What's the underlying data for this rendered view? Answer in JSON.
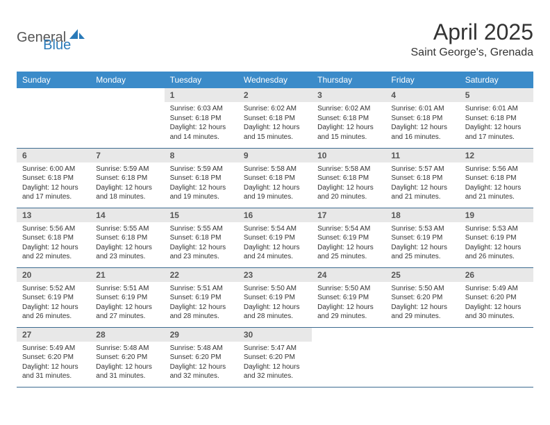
{
  "logo": {
    "word1": "General",
    "word2": "Blue"
  },
  "title": "April 2025",
  "location": "Saint George's, Grenada",
  "colors": {
    "header_bg": "#3b8bc9",
    "header_text": "#ffffff",
    "daynum_bg": "#e8e8e8",
    "daynum_text": "#555555",
    "body_text": "#333333",
    "rule": "#3b6a8f",
    "logo_gray": "#555555",
    "logo_blue": "#2a7ab9"
  },
  "typography": {
    "title_fontsize": 32,
    "location_fontsize": 16,
    "weekday_fontsize": 12,
    "daynum_fontsize": 12,
    "body_fontsize": 10
  },
  "weekdays": [
    "Sunday",
    "Monday",
    "Tuesday",
    "Wednesday",
    "Thursday",
    "Friday",
    "Saturday"
  ],
  "weeks": [
    [
      null,
      null,
      {
        "n": "1",
        "sr": "Sunrise: 6:03 AM",
        "ss": "Sunset: 6:18 PM",
        "dl": "Daylight: 12 hours and 14 minutes."
      },
      {
        "n": "2",
        "sr": "Sunrise: 6:02 AM",
        "ss": "Sunset: 6:18 PM",
        "dl": "Daylight: 12 hours and 15 minutes."
      },
      {
        "n": "3",
        "sr": "Sunrise: 6:02 AM",
        "ss": "Sunset: 6:18 PM",
        "dl": "Daylight: 12 hours and 15 minutes."
      },
      {
        "n": "4",
        "sr": "Sunrise: 6:01 AM",
        "ss": "Sunset: 6:18 PM",
        "dl": "Daylight: 12 hours and 16 minutes."
      },
      {
        "n": "5",
        "sr": "Sunrise: 6:01 AM",
        "ss": "Sunset: 6:18 PM",
        "dl": "Daylight: 12 hours and 17 minutes."
      }
    ],
    [
      {
        "n": "6",
        "sr": "Sunrise: 6:00 AM",
        "ss": "Sunset: 6:18 PM",
        "dl": "Daylight: 12 hours and 17 minutes."
      },
      {
        "n": "7",
        "sr": "Sunrise: 5:59 AM",
        "ss": "Sunset: 6:18 PM",
        "dl": "Daylight: 12 hours and 18 minutes."
      },
      {
        "n": "8",
        "sr": "Sunrise: 5:59 AM",
        "ss": "Sunset: 6:18 PM",
        "dl": "Daylight: 12 hours and 19 minutes."
      },
      {
        "n": "9",
        "sr": "Sunrise: 5:58 AM",
        "ss": "Sunset: 6:18 PM",
        "dl": "Daylight: 12 hours and 19 minutes."
      },
      {
        "n": "10",
        "sr": "Sunrise: 5:58 AM",
        "ss": "Sunset: 6:18 PM",
        "dl": "Daylight: 12 hours and 20 minutes."
      },
      {
        "n": "11",
        "sr": "Sunrise: 5:57 AM",
        "ss": "Sunset: 6:18 PM",
        "dl": "Daylight: 12 hours and 21 minutes."
      },
      {
        "n": "12",
        "sr": "Sunrise: 5:56 AM",
        "ss": "Sunset: 6:18 PM",
        "dl": "Daylight: 12 hours and 21 minutes."
      }
    ],
    [
      {
        "n": "13",
        "sr": "Sunrise: 5:56 AM",
        "ss": "Sunset: 6:18 PM",
        "dl": "Daylight: 12 hours and 22 minutes."
      },
      {
        "n": "14",
        "sr": "Sunrise: 5:55 AM",
        "ss": "Sunset: 6:18 PM",
        "dl": "Daylight: 12 hours and 23 minutes."
      },
      {
        "n": "15",
        "sr": "Sunrise: 5:55 AM",
        "ss": "Sunset: 6:18 PM",
        "dl": "Daylight: 12 hours and 23 minutes."
      },
      {
        "n": "16",
        "sr": "Sunrise: 5:54 AM",
        "ss": "Sunset: 6:19 PM",
        "dl": "Daylight: 12 hours and 24 minutes."
      },
      {
        "n": "17",
        "sr": "Sunrise: 5:54 AM",
        "ss": "Sunset: 6:19 PM",
        "dl": "Daylight: 12 hours and 25 minutes."
      },
      {
        "n": "18",
        "sr": "Sunrise: 5:53 AM",
        "ss": "Sunset: 6:19 PM",
        "dl": "Daylight: 12 hours and 25 minutes."
      },
      {
        "n": "19",
        "sr": "Sunrise: 5:53 AM",
        "ss": "Sunset: 6:19 PM",
        "dl": "Daylight: 12 hours and 26 minutes."
      }
    ],
    [
      {
        "n": "20",
        "sr": "Sunrise: 5:52 AM",
        "ss": "Sunset: 6:19 PM",
        "dl": "Daylight: 12 hours and 26 minutes."
      },
      {
        "n": "21",
        "sr": "Sunrise: 5:51 AM",
        "ss": "Sunset: 6:19 PM",
        "dl": "Daylight: 12 hours and 27 minutes."
      },
      {
        "n": "22",
        "sr": "Sunrise: 5:51 AM",
        "ss": "Sunset: 6:19 PM",
        "dl": "Daylight: 12 hours and 28 minutes."
      },
      {
        "n": "23",
        "sr": "Sunrise: 5:50 AM",
        "ss": "Sunset: 6:19 PM",
        "dl": "Daylight: 12 hours and 28 minutes."
      },
      {
        "n": "24",
        "sr": "Sunrise: 5:50 AM",
        "ss": "Sunset: 6:19 PM",
        "dl": "Daylight: 12 hours and 29 minutes."
      },
      {
        "n": "25",
        "sr": "Sunrise: 5:50 AM",
        "ss": "Sunset: 6:20 PM",
        "dl": "Daylight: 12 hours and 29 minutes."
      },
      {
        "n": "26",
        "sr": "Sunrise: 5:49 AM",
        "ss": "Sunset: 6:20 PM",
        "dl": "Daylight: 12 hours and 30 minutes."
      }
    ],
    [
      {
        "n": "27",
        "sr": "Sunrise: 5:49 AM",
        "ss": "Sunset: 6:20 PM",
        "dl": "Daylight: 12 hours and 31 minutes."
      },
      {
        "n": "28",
        "sr": "Sunrise: 5:48 AM",
        "ss": "Sunset: 6:20 PM",
        "dl": "Daylight: 12 hours and 31 minutes."
      },
      {
        "n": "29",
        "sr": "Sunrise: 5:48 AM",
        "ss": "Sunset: 6:20 PM",
        "dl": "Daylight: 12 hours and 32 minutes."
      },
      {
        "n": "30",
        "sr": "Sunrise: 5:47 AM",
        "ss": "Sunset: 6:20 PM",
        "dl": "Daylight: 12 hours and 32 minutes."
      },
      null,
      null,
      null
    ]
  ]
}
